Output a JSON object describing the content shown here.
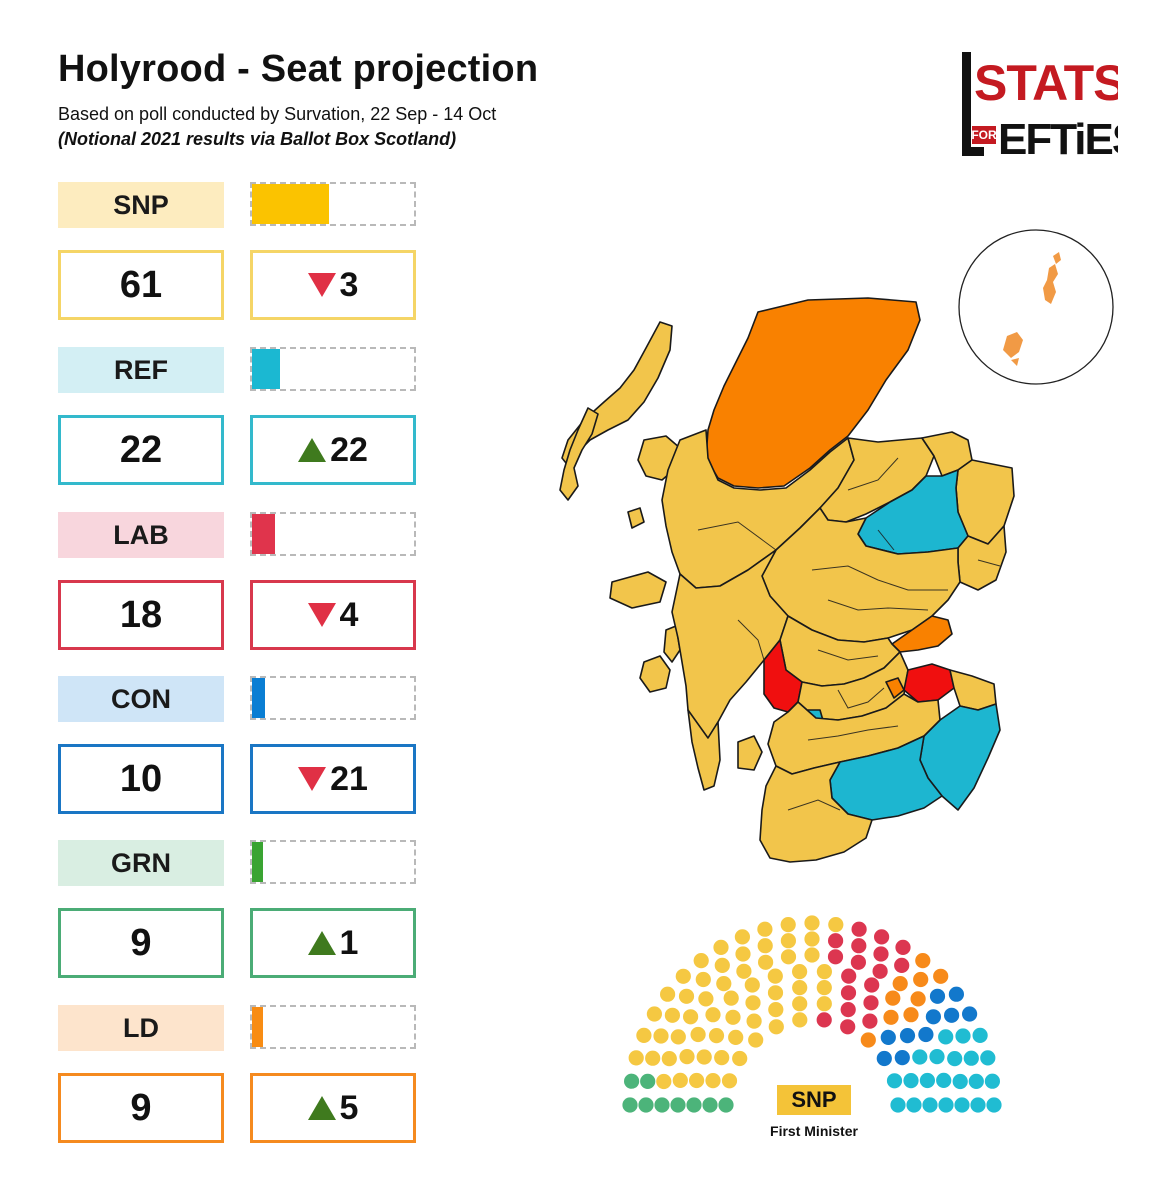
{
  "header": {
    "title": "Holyrood - Seat projection",
    "subtitle": "Based on poll conducted by Survation, 22 Sep - 14 Oct",
    "note": "(Notional 2021 results via Ballot Box Scotland)"
  },
  "logo": {
    "text_top": "STATS",
    "text_for": "FOR",
    "text_bottom": "EFTiES",
    "color": "#c41a21"
  },
  "chart_data": {
    "type": "bar",
    "title": "Holyrood - Seat projection",
    "total_seats": 129,
    "seat_bar_max": 129,
    "parties": [
      {
        "abbr": "SNP",
        "seats": 61,
        "change": 3,
        "direction": "down",
        "color": "#fbc300",
        "light": "#fdecbf",
        "border": "#f5d566"
      },
      {
        "abbr": "REF",
        "seats": 22,
        "change": 22,
        "direction": "up",
        "color": "#1bb8d2",
        "light": "#d3eff4",
        "border": "#33b9cc"
      },
      {
        "abbr": "LAB",
        "seats": 18,
        "change": 4,
        "direction": "down",
        "color": "#e0344c",
        "light": "#f8d6dd",
        "border": "#d8384d"
      },
      {
        "abbr": "CON",
        "seats": 10,
        "change": 21,
        "direction": "down",
        "color": "#0a7ed3",
        "light": "#cfe5f7",
        "border": "#1a76c4"
      },
      {
        "abbr": "GRN",
        "seats": 9,
        "change": 1,
        "direction": "up",
        "color": "#3aa432",
        "light": "#d9eee2",
        "border": "#4bac76"
      },
      {
        "abbr": "LD",
        "seats": 9,
        "change": 5,
        "direction": "up",
        "color": "#f88c13",
        "light": "#fde4cc",
        "border": "#f58a1f"
      }
    ],
    "hemicycle": {
      "rows": 7,
      "order": [
        "GRN",
        "SNP",
        "LAB",
        "LD",
        "CON",
        "REF"
      ],
      "colors": {
        "GRN": "#4cb47a",
        "SNP": "#f5c842",
        "LAB": "#dc3650",
        "LD": "#f78a1a",
        "CON": "#1278cc",
        "REF": "#20bcd2"
      }
    }
  },
  "legend": {
    "first_minister_party": "SNP",
    "first_minister_caption": "First Minister"
  },
  "map": {
    "colors": {
      "snp": "#f2c54b",
      "ld": "#f98100",
      "ref": "#1db6d0",
      "lab": "#f00f0f",
      "con": "#0a7ed3",
      "outline": "#1a1a1a"
    }
  }
}
